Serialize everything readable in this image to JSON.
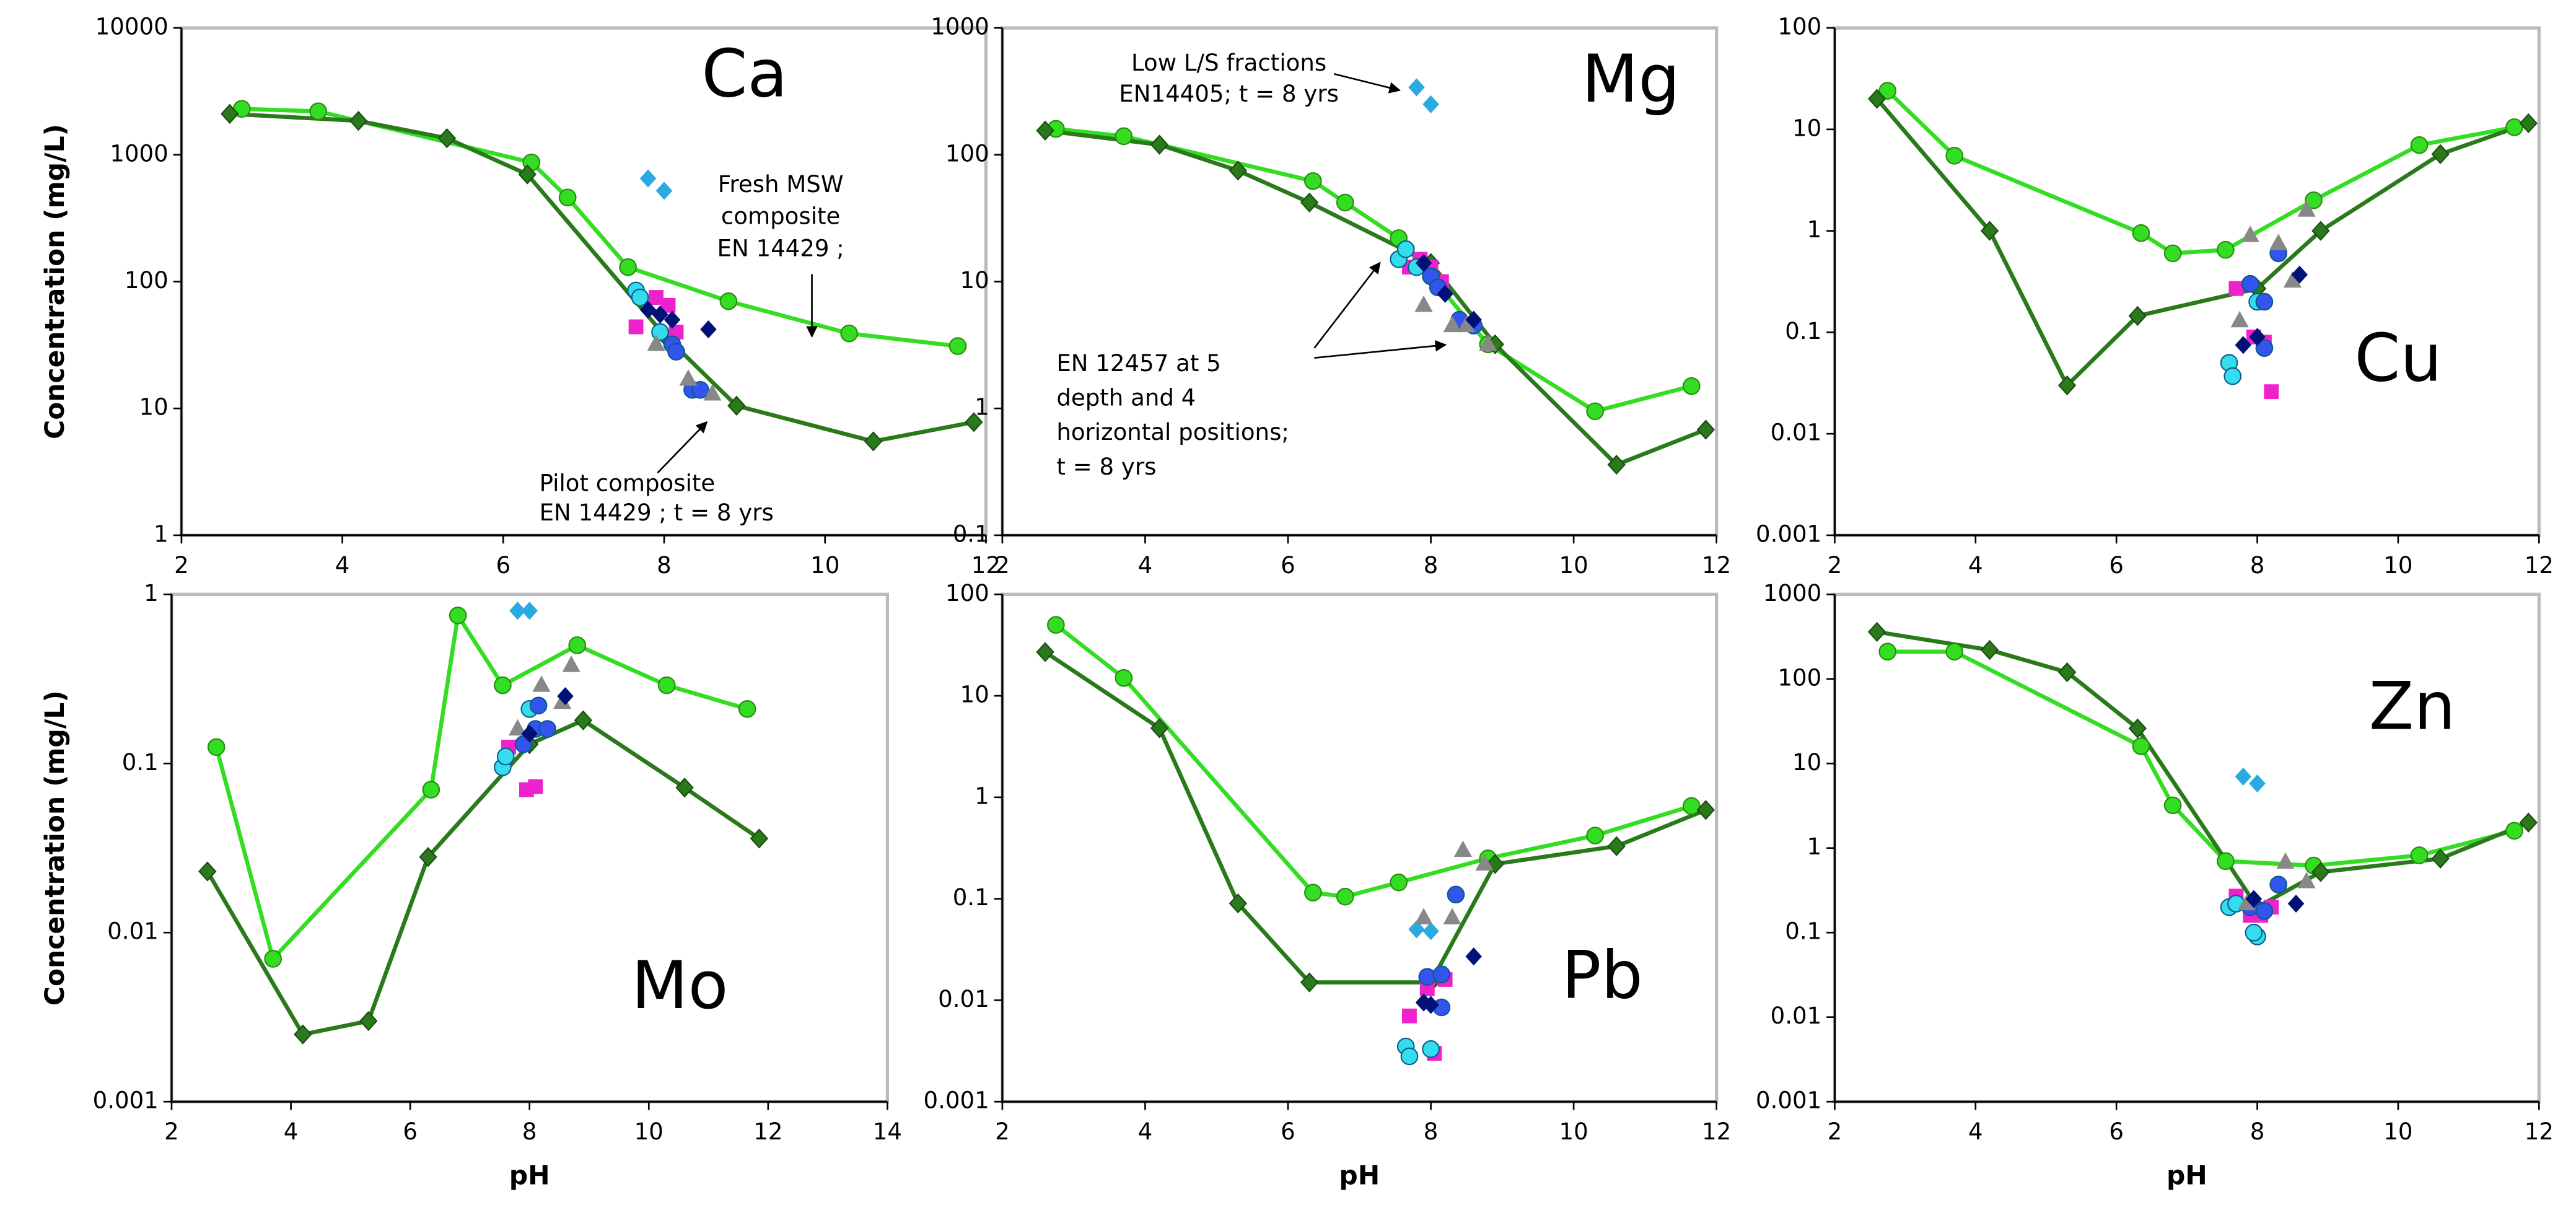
{
  "chart_data": [
    {
      "type": "line",
      "label": "Ca",
      "ylabel": "Concentration (mg/L)",
      "log_y": true,
      "xlim": [
        2,
        12
      ],
      "xticks": [
        2,
        4,
        6,
        8,
        10,
        12
      ],
      "ylim": [
        1,
        10000
      ],
      "yticks": [
        1,
        10,
        100,
        1000,
        10000
      ],
      "series": [
        {
          "color": "#33dd22",
          "marker": "circle",
          "x": [
            2.75,
            3.7,
            6.35,
            6.8,
            7.55,
            8.8,
            10.3,
            11.65
          ],
          "values": [
            2300,
            2200,
            870,
            460,
            130,
            70,
            39,
            31
          ]
        },
        {
          "color": "#2a7a1c",
          "marker": "diamond",
          "x": [
            2.6,
            4.2,
            5.3,
            6.3,
            8.0,
            8.9,
            10.6,
            11.85
          ],
          "values": [
            2100,
            1850,
            1350,
            700,
            38,
            10.5,
            5.5,
            7.8
          ]
        },
        {
          "color": "#29abe2",
          "marker": "diamond",
          "scatter": true,
          "x": [
            7.8,
            8.0
          ],
          "values": [
            650,
            520
          ]
        },
        {
          "color": "#ee22cc",
          "marker": "square",
          "scatter": true,
          "x": [
            7.65,
            7.9,
            8.05,
            8.15
          ],
          "values": [
            44,
            75,
            65,
            40
          ]
        },
        {
          "color": "#33ddee",
          "marker": "circle",
          "scatter": true,
          "x": [
            7.65,
            7.7,
            7.95
          ],
          "values": [
            85,
            75,
            40
          ]
        },
        {
          "color": "#3355ee",
          "marker": "circle",
          "scatter": true,
          "x": [
            8.1,
            8.15,
            8.35,
            8.45
          ],
          "values": [
            32,
            28,
            14,
            14
          ]
        },
        {
          "color": "#888888",
          "marker": "triangle",
          "scatter": true,
          "x": [
            7.9,
            8.3,
            8.6
          ],
          "values": [
            32,
            17,
            13
          ]
        },
        {
          "color": "#001177",
          "marker": "diamond",
          "scatter": true,
          "x": [
            7.8,
            7.95,
            8.1,
            8.55
          ],
          "values": [
            60,
            55,
            50,
            42
          ]
        }
      ],
      "annotations": [
        {
          "lines": [
            "Fresh MSW",
            "composite",
            "EN 14429 ;"
          ]
        },
        {
          "lines": [
            "Pilot composite",
            "EN 14429 ; t = 8 yrs"
          ]
        }
      ]
    },
    {
      "type": "line",
      "label": "Mg",
      "log_y": true,
      "xlim": [
        2,
        12
      ],
      "xticks": [
        2,
        4,
        6,
        8,
        10,
        12
      ],
      "ylim": [
        0.1,
        1000
      ],
      "yticks": [
        0.1,
        1,
        10,
        100,
        1000
      ],
      "series": [
        {
          "color": "#33dd22",
          "marker": "circle",
          "x": [
            2.75,
            3.7,
            6.35,
            6.8,
            7.55,
            8.8,
            10.3,
            11.65
          ],
          "values": [
            160,
            140,
            62,
            42,
            22,
            3.2,
            0.95,
            1.5
          ]
        },
        {
          "color": "#2a7a1c",
          "marker": "diamond",
          "x": [
            2.6,
            4.2,
            5.3,
            6.3,
            8.0,
            8.9,
            10.6,
            11.85
          ],
          "values": [
            155,
            120,
            75,
            42,
            14,
            3.2,
            0.36,
            0.68
          ]
        },
        {
          "color": "#29abe2",
          "marker": "diamond",
          "scatter": true,
          "x": [
            7.8,
            8.0
          ],
          "values": [
            340,
            250
          ]
        },
        {
          "color": "#ee22cc",
          "marker": "square",
          "scatter": true,
          "x": [
            7.7,
            7.85,
            8.0,
            8.15
          ],
          "values": [
            13,
            15,
            13,
            10
          ]
        },
        {
          "color": "#33ddee",
          "marker": "circle",
          "scatter": true,
          "x": [
            7.55,
            7.65,
            7.8
          ],
          "values": [
            15,
            18,
            13
          ]
        },
        {
          "color": "#3355ee",
          "marker": "circle",
          "scatter": true,
          "x": [
            8.0,
            8.1,
            8.4,
            8.6
          ],
          "values": [
            11,
            9,
            5,
            4.5
          ]
        },
        {
          "color": "#888888",
          "marker": "triangle",
          "scatter": true,
          "x": [
            7.9,
            8.3,
            8.5,
            8.8
          ],
          "values": [
            6.5,
            4.5,
            4.5,
            3.2
          ]
        },
        {
          "color": "#001177",
          "marker": "diamond",
          "scatter": true,
          "x": [
            7.9,
            8.2,
            8.6
          ],
          "values": [
            14,
            8,
            5
          ]
        }
      ],
      "annotations": [
        {
          "lines": [
            "Low L/S fractions",
            "EN14405; t = 8 yrs"
          ]
        },
        {
          "lines": [
            "EN 12457 at 5",
            "depth and 4",
            "horizontal positions;",
            "t = 8 yrs"
          ]
        }
      ]
    },
    {
      "type": "line",
      "label": "Cu",
      "log_y": true,
      "xlim": [
        2,
        12
      ],
      "xticks": [
        2,
        4,
        6,
        8,
        10,
        12
      ],
      "ylim": [
        0.001,
        100
      ],
      "yticks": [
        0.001,
        0.01,
        0.1,
        1,
        10,
        100
      ],
      "series": [
        {
          "color": "#33dd22",
          "marker": "circle",
          "x": [
            2.75,
            3.7,
            6.35,
            6.8,
            7.55,
            8.8,
            10.3,
            11.65
          ],
          "values": [
            24,
            5.5,
            0.95,
            0.6,
            0.65,
            2,
            7,
            10.5
          ]
        },
        {
          "color": "#2a7a1c",
          "marker": "diamond",
          "x": [
            2.6,
            4.2,
            5.3,
            6.3,
            8.0,
            8.9,
            10.6,
            11.85
          ],
          "values": [
            20,
            1,
            0.03,
            0.145,
            0.27,
            1,
            5.7,
            11.5
          ]
        },
        {
          "color": "#ee22cc",
          "marker": "square",
          "scatter": true,
          "x": [
            7.7,
            7.95,
            8.1,
            8.2
          ],
          "values": [
            0.27,
            0.09,
            0.08,
            0.026
          ]
        },
        {
          "color": "#33ddee",
          "marker": "circle",
          "scatter": true,
          "x": [
            7.6,
            7.65,
            8.0
          ],
          "values": [
            0.05,
            0.037,
            0.2
          ]
        },
        {
          "color": "#3355ee",
          "marker": "circle",
          "scatter": true,
          "x": [
            7.9,
            8.1,
            8.3,
            8.1
          ],
          "values": [
            0.3,
            0.2,
            0.6,
            0.07
          ]
        },
        {
          "color": "#888888",
          "marker": "triangle",
          "scatter": true,
          "x": [
            7.9,
            8.3,
            8.5,
            8.7,
            7.75
          ],
          "values": [
            0.9,
            0.75,
            0.32,
            1.6,
            0.13
          ]
        },
        {
          "color": "#001177",
          "marker": "diamond",
          "scatter": true,
          "x": [
            7.8,
            8.0,
            8.6
          ],
          "values": [
            0.075,
            0.09,
            0.37
          ]
        }
      ]
    },
    {
      "type": "line",
      "label": "Mo",
      "ylabel": "Concentration (mg/L)",
      "xlabel": "pH",
      "log_y": true,
      "xlim": [
        2,
        14
      ],
      "xticks": [
        2,
        4,
        6,
        8,
        10,
        12,
        14
      ],
      "ylim": [
        0.001,
        1
      ],
      "yticks": [
        0.001,
        0.01,
        0.1,
        1
      ],
      "series": [
        {
          "color": "#33dd22",
          "marker": "circle",
          "x": [
            2.75,
            3.7,
            6.35,
            6.8,
            7.55,
            8.8,
            10.3,
            11.65
          ],
          "values": [
            0.125,
            0.007,
            0.07,
            0.75,
            0.29,
            0.5,
            0.29,
            0.21
          ]
        },
        {
          "color": "#2a7a1c",
          "marker": "diamond",
          "x": [
            2.6,
            4.2,
            5.3,
            6.3,
            8.0,
            8.9,
            10.6,
            11.85
          ],
          "values": [
            0.023,
            0.0025,
            0.003,
            0.028,
            0.13,
            0.18,
            0.072,
            0.036
          ]
        },
        {
          "color": "#29abe2",
          "marker": "diamond",
          "scatter": true,
          "x": [
            7.8,
            8.0
          ],
          "values": [
            0.8,
            0.8
          ]
        },
        {
          "color": "#ee22cc",
          "marker": "square",
          "scatter": true,
          "x": [
            7.65,
            7.95,
            8.1
          ],
          "values": [
            0.125,
            0.07,
            0.073
          ]
        },
        {
          "color": "#33ddee",
          "marker": "circle",
          "scatter": true,
          "x": [
            7.55,
            7.6,
            8.0
          ],
          "values": [
            0.095,
            0.11,
            0.21
          ]
        },
        {
          "color": "#3355ee",
          "marker": "circle",
          "scatter": true,
          "x": [
            7.9,
            8.1,
            8.15,
            8.3
          ],
          "values": [
            0.13,
            0.16,
            0.22,
            0.16
          ]
        },
        {
          "color": "#888888",
          "marker": "triangle",
          "scatter": true,
          "x": [
            7.8,
            8.2,
            8.55,
            8.7
          ],
          "values": [
            0.16,
            0.29,
            0.23,
            0.38
          ]
        },
        {
          "color": "#001177",
          "marker": "diamond",
          "scatter": true,
          "x": [
            8.0,
            8.6
          ],
          "values": [
            0.15,
            0.25
          ]
        }
      ]
    },
    {
      "type": "line",
      "label": "Pb",
      "xlabel": "pH",
      "log_y": true,
      "xlim": [
        2,
        12
      ],
      "xticks": [
        2,
        4,
        6,
        8,
        10,
        12
      ],
      "ylim": [
        0.001,
        100
      ],
      "yticks": [
        0.001,
        0.01,
        0.1,
        1,
        10,
        100
      ],
      "series": [
        {
          "color": "#33dd22",
          "marker": "circle",
          "x": [
            2.75,
            3.7,
            6.35,
            6.8,
            7.55,
            8.8,
            10.3,
            11.65
          ],
          "values": [
            50,
            15,
            0.115,
            0.105,
            0.145,
            0.25,
            0.42,
            0.82
          ]
        },
        {
          "color": "#2a7a1c",
          "marker": "diamond",
          "x": [
            2.6,
            4.2,
            5.3,
            6.3,
            8.0,
            8.9,
            10.6,
            11.85
          ],
          "values": [
            27,
            4.8,
            0.09,
            0.015,
            0.015,
            0.22,
            0.33,
            0.75
          ]
        },
        {
          "color": "#29abe2",
          "marker": "diamond",
          "scatter": true,
          "x": [
            7.8,
            8.0
          ],
          "values": [
            0.05,
            0.048
          ]
        },
        {
          "color": "#ee22cc",
          "marker": "square",
          "scatter": true,
          "x": [
            7.7,
            7.95,
            8.2,
            8.05
          ],
          "values": [
            0.007,
            0.013,
            0.016,
            0.003
          ]
        },
        {
          "color": "#33ddee",
          "marker": "circle",
          "scatter": true,
          "x": [
            7.65,
            7.7,
            8.0
          ],
          "values": [
            0.0035,
            0.0028,
            0.0033
          ]
        },
        {
          "color": "#3355ee",
          "marker": "circle",
          "scatter": true,
          "x": [
            7.95,
            8.15,
            8.15,
            8.35
          ],
          "values": [
            0.017,
            0.018,
            0.0085,
            0.11
          ]
        },
        {
          "color": "#888888",
          "marker": "triangle",
          "scatter": true,
          "x": [
            7.9,
            8.3,
            8.45,
            8.75
          ],
          "values": [
            0.065,
            0.065,
            0.3,
            0.22
          ]
        },
        {
          "color": "#001177",
          "marker": "diamond",
          "scatter": true,
          "x": [
            7.9,
            8.0,
            8.6
          ],
          "values": [
            0.0095,
            0.009,
            0.027
          ]
        }
      ]
    },
    {
      "type": "line",
      "label": "Zn",
      "xlabel": "pH",
      "log_y": true,
      "xlim": [
        2,
        12
      ],
      "xticks": [
        2,
        4,
        6,
        8,
        10,
        12
      ],
      "ylim": [
        0.001,
        1000
      ],
      "yticks": [
        0.001,
        0.01,
        0.1,
        1,
        10,
        100,
        1000
      ],
      "series": [
        {
          "color": "#33dd22",
          "marker": "circle",
          "x": [
            2.75,
            3.7,
            6.35,
            6.8,
            7.55,
            8.8,
            10.3,
            11.65
          ],
          "values": [
            210,
            210,
            16,
            3.2,
            0.7,
            0.62,
            0.82,
            1.6
          ]
        },
        {
          "color": "#2a7a1c",
          "marker": "diamond",
          "x": [
            2.6,
            4.2,
            5.3,
            6.3,
            8.0,
            8.9,
            10.6,
            11.85
          ],
          "values": [
            360,
            220,
            120,
            26,
            0.2,
            0.52,
            0.75,
            2
          ]
        },
        {
          "color": "#29abe2",
          "marker": "diamond",
          "scatter": true,
          "x": [
            7.8,
            8.0
          ],
          "values": [
            7,
            5.8
          ]
        },
        {
          "color": "#ee22cc",
          "marker": "square",
          "scatter": true,
          "x": [
            7.7,
            7.9,
            8.05,
            8.2
          ],
          "values": [
            0.27,
            0.16,
            0.16,
            0.2
          ]
        },
        {
          "color": "#33ddee",
          "marker": "circle",
          "scatter": true,
          "x": [
            7.6,
            7.7,
            8.0,
            7.95
          ],
          "values": [
            0.2,
            0.22,
            0.09,
            0.1
          ]
        },
        {
          "color": "#3355ee",
          "marker": "circle",
          "scatter": true,
          "x": [
            7.9,
            8.1,
            8.3
          ],
          "values": [
            0.2,
            0.18,
            0.37
          ]
        },
        {
          "color": "#888888",
          "marker": "triangle",
          "scatter": true,
          "x": [
            7.85,
            8.4,
            8.7
          ],
          "values": [
            0.22,
            0.68,
            0.4
          ]
        },
        {
          "color": "#001177",
          "marker": "diamond",
          "scatter": true,
          "x": [
            7.95,
            8.55
          ],
          "values": [
            0.25,
            0.22
          ]
        }
      ]
    }
  ]
}
